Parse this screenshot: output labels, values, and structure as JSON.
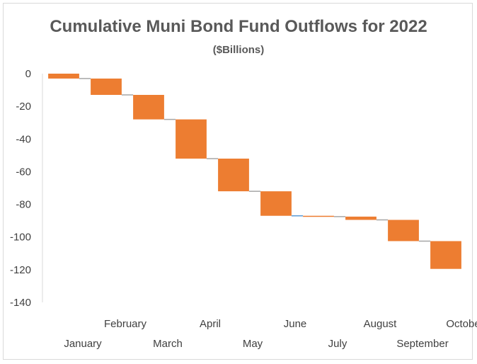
{
  "chart_data": {
    "type": "waterfall",
    "title": "Cumulative Muni Bond Fund Outflows for 2022",
    "subtitle": "($Billions)",
    "categories": [
      "January",
      "February",
      "March",
      "April",
      "May",
      "June",
      "July",
      "August",
      "September",
      "October"
    ],
    "values": [
      -3,
      -10,
      -15,
      -24,
      -20,
      -15,
      -0.5,
      -2,
      -13,
      -17
    ],
    "cumulative": [
      -3,
      -13,
      -28,
      -52,
      -72,
      -87,
      -87.5,
      -89.5,
      -102.5,
      -119.5
    ],
    "ylim": [
      -140,
      0
    ],
    "yticks": [
      0,
      -20,
      -40,
      -60,
      -80,
      -100,
      -120,
      -140
    ],
    "grid": false,
    "legend": "none",
    "colors": {
      "bar": "#ed7d31",
      "connector": "#a6a6a6",
      "flat_connector": "#5b9bd5",
      "axis": "#d9d9d9",
      "text": "#595959"
    }
  }
}
